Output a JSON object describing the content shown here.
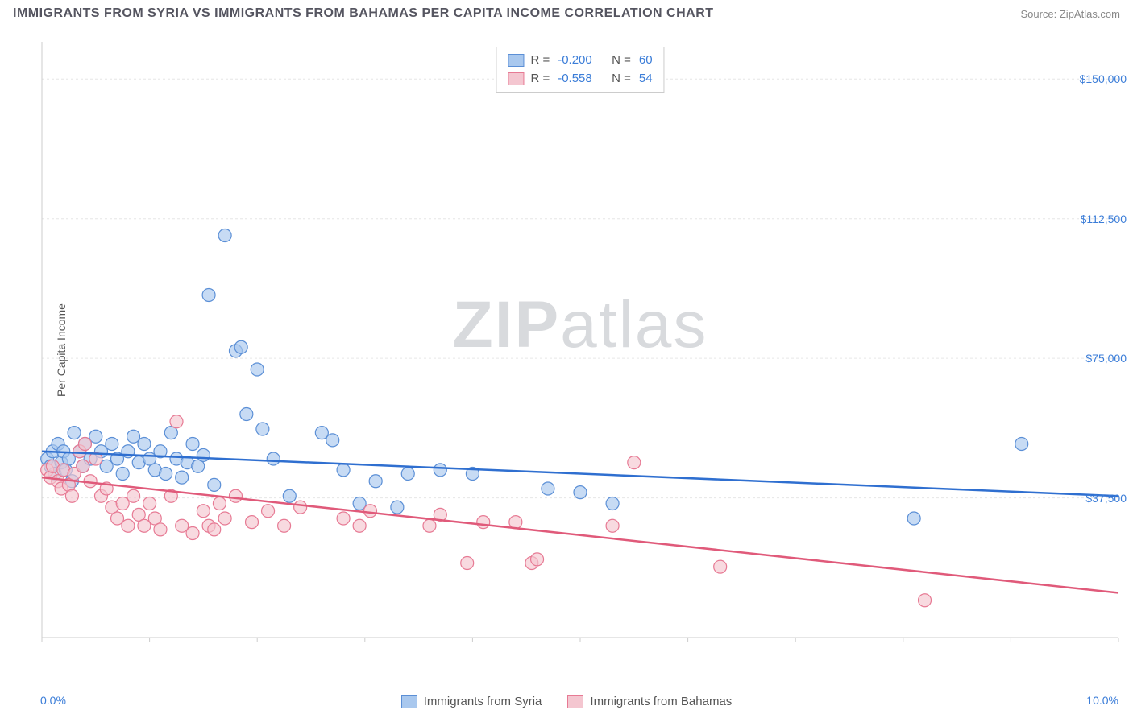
{
  "header": {
    "title": "IMMIGRANTS FROM SYRIA VS IMMIGRANTS FROM BAHAMAS PER CAPITA INCOME CORRELATION CHART",
    "source_prefix": "Source: ",
    "source_name": "ZipAtlas.com"
  },
  "watermark": {
    "bold": "ZIP",
    "rest": "atlas"
  },
  "chart": {
    "type": "scatter",
    "ylabel": "Per Capita Income",
    "xlim": [
      0,
      10
    ],
    "ylim": [
      0,
      160000
    ],
    "x_axis": {
      "min_label": "0.0%",
      "max_label": "10.0%",
      "tick_positions": [
        0,
        1,
        2,
        3,
        4,
        5,
        6,
        7,
        8,
        9,
        10
      ]
    },
    "y_axis": {
      "ticks": [
        {
          "v": 37500,
          "label": "$37,500"
        },
        {
          "v": 75000,
          "label": "$75,000"
        },
        {
          "v": 112500,
          "label": "$112,500"
        },
        {
          "v": 150000,
          "label": "$150,000"
        }
      ]
    },
    "background_color": "#ffffff",
    "grid_color": "#e6e6e6",
    "axis_color": "#cccccc",
    "series": [
      {
        "name": "Immigrants from Syria",
        "fill": "#a9c8ee",
        "stroke": "#5b8fd6",
        "line_color": "#2f6fd0",
        "marker_r": 8,
        "R_label": "R = ",
        "R_value": "-0.200",
        "N_label": "N = ",
        "N_value": "60",
        "trend": {
          "x1": 0,
          "y1": 50000,
          "x2": 10,
          "y2": 38000
        },
        "points": [
          [
            0.05,
            48000
          ],
          [
            0.08,
            46000
          ],
          [
            0.1,
            50000
          ],
          [
            0.12,
            44000
          ],
          [
            0.15,
            52000
          ],
          [
            0.18,
            47000
          ],
          [
            0.2,
            50000
          ],
          [
            0.22,
            45000
          ],
          [
            0.25,
            48000
          ],
          [
            0.28,
            42000
          ],
          [
            0.3,
            55000
          ],
          [
            0.35,
            50000
          ],
          [
            0.38,
            46000
          ],
          [
            0.4,
            52000
          ],
          [
            0.45,
            48000
          ],
          [
            0.5,
            54000
          ],
          [
            0.55,
            50000
          ],
          [
            0.6,
            46000
          ],
          [
            0.65,
            52000
          ],
          [
            0.7,
            48000
          ],
          [
            0.75,
            44000
          ],
          [
            0.8,
            50000
          ],
          [
            0.85,
            54000
          ],
          [
            0.9,
            47000
          ],
          [
            0.95,
            52000
          ],
          [
            1.0,
            48000
          ],
          [
            1.05,
            45000
          ],
          [
            1.1,
            50000
          ],
          [
            1.15,
            44000
          ],
          [
            1.2,
            55000
          ],
          [
            1.25,
            48000
          ],
          [
            1.3,
            43000
          ],
          [
            1.35,
            47000
          ],
          [
            1.4,
            52000
          ],
          [
            1.45,
            46000
          ],
          [
            1.5,
            49000
          ],
          [
            1.55,
            92000
          ],
          [
            1.6,
            41000
          ],
          [
            1.7,
            108000
          ],
          [
            1.8,
            77000
          ],
          [
            1.85,
            78000
          ],
          [
            1.9,
            60000
          ],
          [
            2.0,
            72000
          ],
          [
            2.05,
            56000
          ],
          [
            2.15,
            48000
          ],
          [
            2.3,
            38000
          ],
          [
            2.6,
            55000
          ],
          [
            2.7,
            53000
          ],
          [
            2.8,
            45000
          ],
          [
            2.95,
            36000
          ],
          [
            3.1,
            42000
          ],
          [
            3.3,
            35000
          ],
          [
            3.4,
            44000
          ],
          [
            3.7,
            45000
          ],
          [
            4.0,
            44000
          ],
          [
            4.7,
            40000
          ],
          [
            5.0,
            39000
          ],
          [
            5.3,
            36000
          ],
          [
            8.1,
            32000
          ],
          [
            9.1,
            52000
          ]
        ]
      },
      {
        "name": "Immigrants from Bahamas",
        "fill": "#f4c6d0",
        "stroke": "#e77a94",
        "line_color": "#e05a7a",
        "marker_r": 8,
        "R_label": "R = ",
        "R_value": "-0.558",
        "N_label": "N = ",
        "N_value": "54",
        "trend": {
          "x1": 0,
          "y1": 43000,
          "x2": 10,
          "y2": 12000
        },
        "points": [
          [
            0.05,
            45000
          ],
          [
            0.08,
            43000
          ],
          [
            0.1,
            46000
          ],
          [
            0.15,
            42000
          ],
          [
            0.18,
            40000
          ],
          [
            0.2,
            45000
          ],
          [
            0.25,
            41000
          ],
          [
            0.28,
            38000
          ],
          [
            0.3,
            44000
          ],
          [
            0.35,
            50000
          ],
          [
            0.38,
            46000
          ],
          [
            0.4,
            52000
          ],
          [
            0.45,
            42000
          ],
          [
            0.5,
            48000
          ],
          [
            0.55,
            38000
          ],
          [
            0.6,
            40000
          ],
          [
            0.65,
            35000
          ],
          [
            0.7,
            32000
          ],
          [
            0.75,
            36000
          ],
          [
            0.8,
            30000
          ],
          [
            0.85,
            38000
          ],
          [
            0.9,
            33000
          ],
          [
            0.95,
            30000
          ],
          [
            1.0,
            36000
          ],
          [
            1.05,
            32000
          ],
          [
            1.1,
            29000
          ],
          [
            1.2,
            38000
          ],
          [
            1.25,
            58000
          ],
          [
            1.3,
            30000
          ],
          [
            1.4,
            28000
          ],
          [
            1.5,
            34000
          ],
          [
            1.55,
            30000
          ],
          [
            1.6,
            29000
          ],
          [
            1.65,
            36000
          ],
          [
            1.7,
            32000
          ],
          [
            1.8,
            38000
          ],
          [
            1.95,
            31000
          ],
          [
            2.1,
            34000
          ],
          [
            2.25,
            30000
          ],
          [
            2.4,
            35000
          ],
          [
            2.8,
            32000
          ],
          [
            2.95,
            30000
          ],
          [
            3.05,
            34000
          ],
          [
            3.6,
            30000
          ],
          [
            3.7,
            33000
          ],
          [
            3.95,
            20000
          ],
          [
            4.1,
            31000
          ],
          [
            4.4,
            31000
          ],
          [
            4.55,
            20000
          ],
          [
            4.6,
            21000
          ],
          [
            5.3,
            30000
          ],
          [
            5.5,
            47000
          ],
          [
            6.3,
            19000
          ],
          [
            8.2,
            10000
          ]
        ]
      }
    ]
  },
  "bottom_legend": [
    {
      "label": "Immigrants from Syria",
      "fill": "#a9c8ee",
      "stroke": "#5b8fd6"
    },
    {
      "label": "Immigrants from Bahamas",
      "fill": "#f4c6d0",
      "stroke": "#e77a94"
    }
  ]
}
